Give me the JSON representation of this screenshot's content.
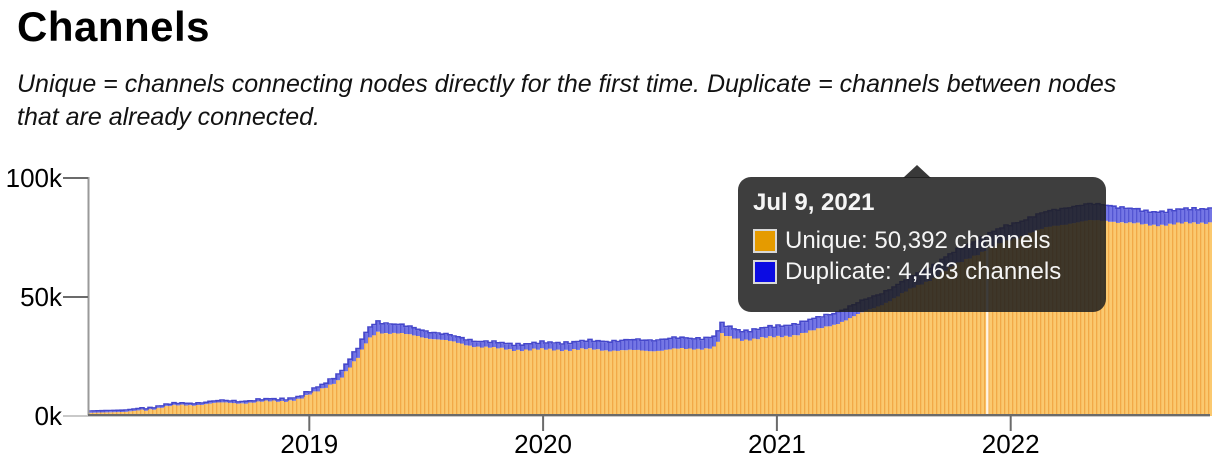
{
  "header": {
    "title": "Channels",
    "subtitle": "Unique = channels connecting nodes directly for the first time. Duplicate = channels between nodes that are already connected."
  },
  "tooltip": {
    "date": "Jul 9, 2021",
    "rows": [
      {
        "series": "Unique",
        "text": "Unique: 50,392 channels",
        "swatch_color": "#E59B00"
      },
      {
        "series": "Duplicate",
        "text": "Duplicate: 4,463 channels",
        "swatch_color": "#0B0BE3"
      }
    ]
  },
  "chart_data": {
    "type": "area",
    "stacked": true,
    "title": "Channels",
    "xlabel": "",
    "ylabel": "",
    "unit": "channels",
    "legend_position": "tooltip-only",
    "grid": false,
    "axes": {
      "ylim": [
        0,
        100000
      ],
      "y_ticks": [
        {
          "label": "100k",
          "value": 100000
        },
        {
          "label": "50k",
          "value": 50000
        },
        {
          "label": "0k",
          "value": 0
        }
      ],
      "x_ticks": [
        {
          "label": "2019",
          "year": 2019
        },
        {
          "label": "2020",
          "year": 2020
        },
        {
          "label": "2021",
          "year": 2021
        },
        {
          "label": "2022",
          "year": 2022
        }
      ],
      "x_range_decimal_years": [
        2018.05,
        2022.86
      ]
    },
    "series": [
      {
        "name": "Unique",
        "fill": "#FBC96F",
        "stripe": "#F2A947"
      },
      {
        "name": "Duplicate",
        "fill": "#7476E5",
        "stripe": "#5355D2"
      }
    ],
    "colors": {
      "unique_fill": "#FBC96F",
      "unique_stripe": "#F2A947",
      "duplicate_fill": "#7476E5",
      "duplicate_stripe": "#5355D2",
      "duplicate_edge": "#4547CB",
      "axis_line": "#9a9a9a",
      "baseline": "#6b6b6b",
      "tick": "#6b6b6b",
      "zero_tick": "#c9c9c9",
      "data_gap": "#ffffff",
      "tooltip_bg": "rgba(30,30,30,0.86)"
    },
    "highlighted_point": {
      "date": "Jul 9, 2021",
      "t": 2021.52,
      "unique": 50392,
      "duplicate": 4463
    },
    "data_gap_t": 2021.9,
    "points": [
      {
        "t": 2018.05,
        "unique": 1300,
        "duplicate": 100
      },
      {
        "t": 2018.13,
        "unique": 1500,
        "duplicate": 120
      },
      {
        "t": 2018.21,
        "unique": 1700,
        "duplicate": 140
      },
      {
        "t": 2018.29,
        "unique": 2600,
        "duplicate": 220
      },
      {
        "t": 2018.38,
        "unique": 3800,
        "duplicate": 320
      },
      {
        "t": 2018.46,
        "unique": 4500,
        "duplicate": 380
      },
      {
        "t": 2018.54,
        "unique": 5000,
        "duplicate": 420
      },
      {
        "t": 2018.63,
        "unique": 5400,
        "duplicate": 470
      },
      {
        "t": 2018.71,
        "unique": 5600,
        "duplicate": 500
      },
      {
        "t": 2018.79,
        "unique": 5800,
        "duplicate": 520
      },
      {
        "t": 2018.88,
        "unique": 6300,
        "duplicate": 560
      },
      {
        "t": 2018.96,
        "unique": 7200,
        "duplicate": 700
      },
      {
        "t": 2019.0,
        "unique": 8800,
        "duplicate": 900
      },
      {
        "t": 2019.04,
        "unique": 10500,
        "duplicate": 1300
      },
      {
        "t": 2019.13,
        "unique": 15500,
        "duplicate": 2300
      },
      {
        "t": 2019.21,
        "unique": 24500,
        "duplicate": 3800
      },
      {
        "t": 2019.25,
        "unique": 32000,
        "duplicate": 4200
      },
      {
        "t": 2019.29,
        "unique": 35600,
        "duplicate": 4100
      },
      {
        "t": 2019.33,
        "unique": 34900,
        "duplicate": 3800
      },
      {
        "t": 2019.38,
        "unique": 34500,
        "duplicate": 3400
      },
      {
        "t": 2019.46,
        "unique": 33800,
        "duplicate": 2700
      },
      {
        "t": 2019.54,
        "unique": 32300,
        "duplicate": 2300
      },
      {
        "t": 2019.63,
        "unique": 30800,
        "duplicate": 2100
      },
      {
        "t": 2019.71,
        "unique": 29400,
        "duplicate": 2000
      },
      {
        "t": 2019.79,
        "unique": 28400,
        "duplicate": 2000
      },
      {
        "t": 2019.88,
        "unique": 27900,
        "duplicate": 2100
      },
      {
        "t": 2019.96,
        "unique": 27800,
        "duplicate": 2300
      },
      {
        "t": 2020.04,
        "unique": 27900,
        "duplicate": 2600
      },
      {
        "t": 2020.13,
        "unique": 27900,
        "duplicate": 2900
      },
      {
        "t": 2020.21,
        "unique": 27900,
        "duplicate": 3200
      },
      {
        "t": 2020.29,
        "unique": 27700,
        "duplicate": 3600
      },
      {
        "t": 2020.38,
        "unique": 27400,
        "duplicate": 4000
      },
      {
        "t": 2020.46,
        "unique": 27500,
        "duplicate": 4200
      },
      {
        "t": 2020.54,
        "unique": 27900,
        "duplicate": 4300
      },
      {
        "t": 2020.63,
        "unique": 28200,
        "duplicate": 4100
      },
      {
        "t": 2020.71,
        "unique": 28600,
        "duplicate": 4200
      },
      {
        "t": 2020.74,
        "unique": 29000,
        "duplicate": 4200
      },
      {
        "t": 2020.76,
        "unique": 34400,
        "duplicate": 4100
      },
      {
        "t": 2020.79,
        "unique": 33200,
        "duplicate": 3800
      },
      {
        "t": 2020.85,
        "unique": 32100,
        "duplicate": 3400
      },
      {
        "t": 2020.92,
        "unique": 32600,
        "duplicate": 3700
      },
      {
        "t": 2021.0,
        "unique": 33100,
        "duplicate": 4100
      },
      {
        "t": 2021.08,
        "unique": 34200,
        "duplicate": 4400
      },
      {
        "t": 2021.17,
        "unique": 36100,
        "duplicate": 4500
      },
      {
        "t": 2021.25,
        "unique": 38700,
        "duplicate": 4500
      },
      {
        "t": 2021.33,
        "unique": 41800,
        "duplicate": 4500
      },
      {
        "t": 2021.42,
        "unique": 45600,
        "duplicate": 4500
      },
      {
        "t": 2021.52,
        "unique": 50392,
        "duplicate": 4463
      },
      {
        "t": 2021.58,
        "unique": 53600,
        "duplicate": 4700
      },
      {
        "t": 2021.67,
        "unique": 58100,
        "duplicate": 5000
      },
      {
        "t": 2021.75,
        "unique": 62600,
        "duplicate": 5300
      },
      {
        "t": 2021.83,
        "unique": 66900,
        "duplicate": 5500
      },
      {
        "t": 2021.92,
        "unique": 70900,
        "duplicate": 5800
      },
      {
        "t": 2022.0,
        "unique": 74100,
        "duplicate": 6000
      },
      {
        "t": 2022.08,
        "unique": 76900,
        "duplicate": 6100
      },
      {
        "t": 2022.17,
        "unique": 79400,
        "duplicate": 6300
      },
      {
        "t": 2022.25,
        "unique": 81100,
        "duplicate": 6500
      },
      {
        "t": 2022.33,
        "unique": 81900,
        "duplicate": 6500
      },
      {
        "t": 2022.42,
        "unique": 82100,
        "duplicate": 6300
      },
      {
        "t": 2022.5,
        "unique": 81100,
        "duplicate": 5800
      },
      {
        "t": 2022.58,
        "unique": 80300,
        "duplicate": 5200
      },
      {
        "t": 2022.67,
        "unique": 80500,
        "duplicate": 5400
      },
      {
        "t": 2022.75,
        "unique": 80900,
        "duplicate": 5500
      },
      {
        "t": 2022.86,
        "unique": 81500,
        "duplicate": 5700
      }
    ]
  }
}
